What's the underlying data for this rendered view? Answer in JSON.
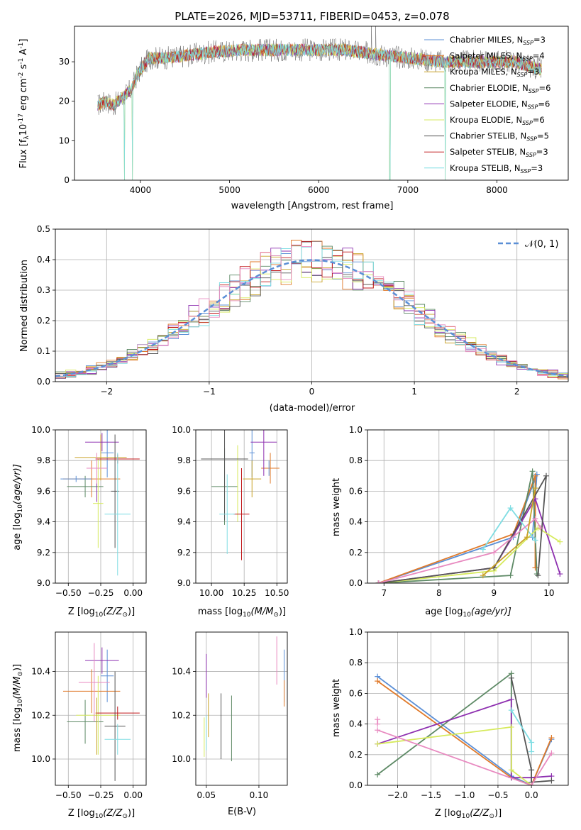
{
  "colors": {
    "palette": [
      "#5b8fd6",
      "#e07a2a",
      "#c9a227",
      "#5e8a66",
      "#8e30b0",
      "#d6ea5c",
      "#4a4a4a",
      "#c0181b",
      "#7fdde3",
      "#e88ac0"
    ],
    "normal_line": "#5b8fd6",
    "grid": "#b0b0b0"
  },
  "chart_data": [
    {
      "id": "spectrum",
      "type": "line",
      "title": "PLATE=2026, MJD=53711, FIBERID=0453, z=0.078",
      "xlabel": "wavelength [Angstrom, rest frame]",
      "ylabel": "Flux [f",
      "ylabel_sub": "λ",
      "ylabel_rest": "10",
      "ylabel_exp1": "-17",
      "ylabel_rest2": " erg cm",
      "ylabel_exp2": "-2",
      "ylabel_rest3": " s",
      "ylabel_exp3": "-1",
      "ylabel_rest4": " A",
      "ylabel_exp4": "-1",
      "ylabel_end": "]",
      "xlim": [
        3260,
        8800
      ],
      "ylim": [
        0,
        39
      ],
      "xticks": [
        "4000",
        "5000",
        "6000",
        "7000",
        "8000"
      ],
      "xtick_values": [
        4000,
        5000,
        6000,
        7000,
        8000
      ],
      "yticks": [
        "0",
        "10",
        "20",
        "30"
      ],
      "ytick_values": [
        0,
        10,
        20,
        30
      ],
      "grid": false,
      "legend_position": "right",
      "continuum": [
        [
          3520,
          19
        ],
        [
          3620,
          20
        ],
        [
          3700,
          19
        ],
        [
          3800,
          21
        ],
        [
          3900,
          23
        ],
        [
          3950,
          26
        ],
        [
          4000,
          28
        ],
        [
          4100,
          31
        ],
        [
          4300,
          31
        ],
        [
          4500,
          31.5
        ],
        [
          4800,
          32.5
        ],
        [
          5200,
          33
        ],
        [
          5600,
          33
        ],
        [
          6000,
          33
        ],
        [
          6300,
          33
        ],
        [
          6600,
          32
        ],
        [
          7000,
          31
        ],
        [
          7400,
          30
        ],
        [
          7800,
          30
        ],
        [
          8200,
          30
        ],
        [
          8500,
          28
        ]
      ],
      "dips": [
        [
          3820,
          0
        ],
        [
          3910,
          0
        ],
        [
          6800,
          0
        ],
        [
          7420,
          0
        ]
      ],
      "spikes": [
        [
          6590,
          39
        ],
        [
          6640,
          39
        ]
      ],
      "series": [
        {
          "name": "Chabrier MILES, N",
          "sub": "SSP",
          "n": "=3"
        },
        {
          "name": "Salpeter MILES, N",
          "sub": "SSP",
          "n": "=4"
        },
        {
          "name": "Kroupa MILES, N",
          "sub": "SSP",
          "n": "=3"
        },
        {
          "name": "Chabrier ELODIE, N",
          "sub": "SSP",
          "n": "=6"
        },
        {
          "name": "Salpeter ELODIE, N",
          "sub": "SSP",
          "n": "=6"
        },
        {
          "name": "Kroupa ELODIE, N",
          "sub": "SSP",
          "n": "=6"
        },
        {
          "name": "Chabrier STELIB, N",
          "sub": "SSP",
          "n": "=5"
        },
        {
          "name": "Salpeter STELIB, N",
          "sub": "SSP",
          "n": "=3"
        },
        {
          "name": "Kroupa STELIB, N",
          "sub": "SSP",
          "n": "=3"
        }
      ]
    },
    {
      "id": "residuals",
      "type": "area",
      "xlabel": "(data-model)/error",
      "ylabel": "Normed distribution",
      "xlim": [
        -2.5,
        2.5
      ],
      "ylim": [
        0,
        0.5
      ],
      "xticks": [
        "−2",
        "−1",
        "0",
        "1",
        "2"
      ],
      "xtick_values": [
        -2,
        -1,
        0,
        1,
        2
      ],
      "yticks": [
        "0.0",
        "0.1",
        "0.2",
        "0.3",
        "0.4",
        "0.5"
      ],
      "ytick_values": [
        0,
        0.1,
        0.2,
        0.3,
        0.4,
        0.5
      ],
      "grid": true,
      "legend_position": "top-right",
      "normal_label": "𝒩(0, 1)",
      "bin_width": 0.1,
      "bin_start": -2.5
    },
    {
      "id": "age_vs_Z",
      "type": "scatter",
      "xlabel_plain": "Z [log",
      "xlabel_sub": "10",
      "xlabel_mid": "(Z/Z",
      "xlabel_sub2": "⊙",
      "xlabel_end": ")]",
      "ylabel_plain": "age  [log",
      "ylabel_sub": "10",
      "ylabel_end": "(age/yr)]",
      "xlim": [
        -0.6,
        0.1
      ],
      "ylim": [
        9.0,
        10.0
      ],
      "xticks": [
        "−0.50",
        "−0.25",
        "0.00"
      ],
      "xtick_values": [
        -0.5,
        -0.25,
        0
      ],
      "yticks": [
        "9.0",
        "9.2",
        "9.4",
        "9.6",
        "9.8",
        "10.0"
      ],
      "ytick_values": [
        9.0,
        9.2,
        9.4,
        9.6,
        9.8,
        10.0
      ],
      "grid": true,
      "points": [
        {
          "c": 0,
          "x": -0.2,
          "xe": 0.05,
          "y": 9.85,
          "ye": 0.16
        },
        {
          "c": 1,
          "x": -0.32,
          "xe": 0.22,
          "y": 9.68,
          "ye": 0.12
        },
        {
          "c": 2,
          "x": -0.25,
          "xe": 0.2,
          "y": 9.82,
          "ye": 0.15
        },
        {
          "c": 3,
          "x": -0.37,
          "xe": 0.14,
          "y": 9.63,
          "ye": 0.07
        },
        {
          "c": 4,
          "x": -0.24,
          "xe": 0.13,
          "y": 9.92,
          "ye": 0.06
        },
        {
          "c": 4,
          "x": -0.28,
          "xe": 0.0,
          "y": 9.63,
          "ye": 0.1
        },
        {
          "c": 5,
          "x": -0.27,
          "xe": 0.04,
          "y": 9.52,
          "ye": 0.29
        },
        {
          "c": 6,
          "x": -0.14,
          "xe": 0.03,
          "y": 9.6,
          "ye": 0.37
        },
        {
          "c": 7,
          "x": -0.12,
          "xe": 0.17,
          "y": 9.81,
          "ye": 0.03
        },
        {
          "c": 8,
          "x": -0.12,
          "xe": 0.1,
          "y": 9.45,
          "ye": 0.4
        },
        {
          "c": 9,
          "x": -0.28,
          "xe": 0.08,
          "y": 9.75,
          "ye": 0.1
        },
        {
          "c": 0,
          "x": -0.44,
          "xe": 0.12,
          "y": 9.68,
          "ye": 0.02
        }
      ]
    },
    {
      "id": "age_vs_mass",
      "type": "scatter",
      "xlabel_plain": "mass [log",
      "xlabel_sub": "10",
      "xlabel_mid": "(M/M",
      "xlabel_sub2": "⊙",
      "xlabel_end": ")]",
      "xlim": [
        9.88,
        10.58
      ],
      "ylim": [
        9.0,
        10.0
      ],
      "xticks": [
        "10.00",
        "10.25",
        "10.50"
      ],
      "xtick_values": [
        10.0,
        10.25,
        10.5
      ],
      "yticks": [
        "9.0",
        "9.2",
        "9.4",
        "9.6",
        "9.8",
        "10.0"
      ],
      "ytick_values": [
        9.0,
        9.2,
        9.4,
        9.6,
        9.8,
        10.0
      ],
      "grid": true,
      "points": [
        {
          "c": 0,
          "x": 10.31,
          "xe": 0.02,
          "y": 9.85,
          "ye": 0.16
        },
        {
          "c": 1,
          "x": 10.45,
          "xe": 0.07,
          "y": 9.75,
          "ye": 0.1
        },
        {
          "c": 2,
          "x": 10.31,
          "xe": 0.07,
          "y": 9.68,
          "ye": 0.12
        },
        {
          "c": 3,
          "x": 10.1,
          "xe": 0.1,
          "y": 9.63,
          "ye": 0.25
        },
        {
          "c": 4,
          "x": 10.4,
          "xe": 0.1,
          "y": 9.92,
          "ye": 0.22
        },
        {
          "c": 5,
          "x": 10.2,
          "xe": 0.0,
          "y": 9.65,
          "ye": 0.25
        },
        {
          "c": 6,
          "x": 10.1,
          "xe": 0.18,
          "y": 9.81,
          "ye": 0.4
        },
        {
          "c": 7,
          "x": 10.23,
          "xe": 0.06,
          "y": 9.45,
          "ye": 0.3
        },
        {
          "c": 8,
          "x": 10.12,
          "xe": 0.06,
          "y": 9.45,
          "ye": 0.26
        },
        {
          "c": 0,
          "x": 10.44,
          "xe": 0.0,
          "y": 9.75,
          "ye": 0.05
        }
      ]
    },
    {
      "id": "weight_vs_age",
      "type": "line",
      "ylabel": "mass weight",
      "xlabel_plain": "age  [log",
      "xlabel_sub": "10",
      "xlabel_end": "(age/yr)]",
      "xlim": [
        6.7,
        10.35
      ],
      "ylim": [
        0,
        1.0
      ],
      "xticks": [
        "7",
        "8",
        "9",
        "10"
      ],
      "xtick_values": [
        7,
        8,
        9,
        10
      ],
      "yticks": [
        "0.0",
        "0.2",
        "0.4",
        "0.6",
        "0.8",
        "1.0"
      ],
      "ytick_values": [
        0,
        0.2,
        0.4,
        0.6,
        0.8,
        1.0
      ],
      "grid": true,
      "lines": [
        {
          "c": 0,
          "pts": [
            [
              6.9,
              0.0
            ],
            [
              9.35,
              0.3
            ],
            [
              9.78,
              0.71
            ],
            [
              9.7,
              0.3
            ]
          ]
        },
        {
          "c": 1,
          "pts": [
            [
              6.9,
              0.0
            ],
            [
              9.35,
              0.32
            ],
            [
              9.75,
              0.7
            ],
            [
              9.75,
              0.1
            ]
          ]
        },
        {
          "c": 3,
          "pts": [
            [
              6.9,
              0.0
            ],
            [
              9.3,
              0.05
            ],
            [
              9.7,
              0.73
            ],
            [
              9.78,
              0.06
            ]
          ]
        },
        {
          "c": 4,
          "pts": [
            [
              6.9,
              0.0
            ],
            [
              9.0,
              0.1
            ],
            [
              9.75,
              0.55
            ],
            [
              10.2,
              0.06
            ]
          ]
        },
        {
          "c": 5,
          "pts": [
            [
              6.9,
              0.0
            ],
            [
              9.0,
              0.08
            ],
            [
              9.8,
              0.36
            ],
            [
              10.2,
              0.27
            ]
          ]
        },
        {
          "c": 6,
          "pts": [
            [
              6.9,
              0.0
            ],
            [
              9.0,
              0.1
            ],
            [
              9.95,
              0.7
            ],
            [
              9.8,
              0.05
            ]
          ]
        },
        {
          "c": 8,
          "pts": [
            [
              8.8,
              0.22
            ],
            [
              9.3,
              0.49
            ],
            [
              9.75,
              0.28
            ]
          ]
        },
        {
          "c": 9,
          "pts": [
            [
              6.9,
              0.0
            ],
            [
              9.0,
              0.2
            ],
            [
              9.75,
              0.42
            ],
            [
              9.85,
              0.36
            ]
          ]
        },
        {
          "c": 2,
          "pts": [
            [
              8.8,
              0.05
            ],
            [
              9.6,
              0.3
            ],
            [
              9.75,
              0.62
            ]
          ]
        }
      ]
    },
    {
      "id": "mass_vs_Z",
      "type": "scatter",
      "xlabel_plain": "Z [log",
      "xlabel_sub": "10",
      "xlabel_mid": "(Z/Z",
      "xlabel_sub2": "⊙",
      "xlabel_end": ")]",
      "ylabel_plain": "mass [log",
      "ylabel_sub": "10",
      "ylabel_end": "(M/M",
      "ylabel_sub2": "⊙",
      "ylabel_end2": ")]",
      "xlim": [
        -0.6,
        0.1
      ],
      "ylim": [
        9.88,
        10.58
      ],
      "xticks": [
        "−0.50",
        "−0.25",
        "0.00"
      ],
      "xtick_values": [
        -0.5,
        -0.25,
        0
      ],
      "yticks": [
        "10.0",
        "10.2",
        "10.4"
      ],
      "ytick_values": [
        10.0,
        10.2,
        10.4
      ],
      "grid": true,
      "points": [
        {
          "c": 0,
          "x": -0.2,
          "xe": 0.05,
          "y": 10.38,
          "ye": 0.12
        },
        {
          "c": 1,
          "x": -0.32,
          "xe": 0.22,
          "y": 10.31,
          "ye": 0.1
        },
        {
          "c": 3,
          "x": -0.37,
          "xe": 0.14,
          "y": 10.17,
          "ye": 0.1
        },
        {
          "c": 4,
          "x": -0.24,
          "xe": 0.13,
          "y": 10.45,
          "ye": 0.06
        },
        {
          "c": 5,
          "x": -0.27,
          "xe": 0.17,
          "y": 10.2,
          "ye": 0.18
        },
        {
          "c": 6,
          "x": -0.14,
          "xe": 0.08,
          "y": 10.15,
          "ye": 0.25
        },
        {
          "c": 7,
          "x": -0.12,
          "xe": 0.17,
          "y": 10.21,
          "ye": 0.03
        },
        {
          "c": 8,
          "x": -0.12,
          "xe": 0.1,
          "y": 10.09,
          "ye": 0.07
        },
        {
          "c": 9,
          "x": -0.3,
          "xe": 0.12,
          "y": 10.35,
          "ye": 0.18
        },
        {
          "c": 2,
          "x": -0.28,
          "xe": 0.0,
          "y": 10.15,
          "ye": 0.13
        }
      ]
    },
    {
      "id": "mass_vs_EBV",
      "type": "scatter",
      "xlabel": "E(B-V)",
      "xlim": [
        0.04,
        0.127
      ],
      "ylim": [
        9.88,
        10.58
      ],
      "xticks": [
        "0.05",
        "0.10"
      ],
      "xtick_values": [
        0.05,
        0.1
      ],
      "yticks": [
        "10.0",
        "10.2",
        "10.4"
      ],
      "ytick_values": [
        10.0,
        10.2,
        10.4
      ],
      "grid": true,
      "points": [
        {
          "c": 0,
          "x": 0.124,
          "xe": 0.0,
          "y": 10.38,
          "ye": 0.12
        },
        {
          "c": 1,
          "x": 0.124,
          "xe": 0.0,
          "y": 10.3,
          "ye": 0.06
        },
        {
          "c": 4,
          "x": 0.05,
          "xe": 0.0,
          "y": 10.38,
          "ye": 0.1
        },
        {
          "c": 2,
          "x": 0.052,
          "xe": 0.0,
          "y": 10.2,
          "ye": 0.1
        },
        {
          "c": 5,
          "x": 0.048,
          "xe": 0.0,
          "y": 10.1,
          "ye": 0.09
        },
        {
          "c": 3,
          "x": 0.074,
          "xe": 0.0,
          "y": 10.14,
          "ye": 0.15
        },
        {
          "c": 6,
          "x": 0.064,
          "xe": 0.0,
          "y": 10.15,
          "ye": 0.15
        },
        {
          "c": 9,
          "x": 0.117,
          "xe": 0.0,
          "y": 10.45,
          "ye": 0.11
        },
        {
          "c": 8,
          "x": 0.05,
          "xe": 0.0,
          "y": 10.12,
          "ye": 0.08
        }
      ]
    },
    {
      "id": "weight_vs_Z",
      "type": "line",
      "ylabel": "mass weight",
      "xlabel_plain": "Z [log",
      "xlabel_sub": "10",
      "xlabel_mid": "(Z/Z",
      "xlabel_sub2": "⊙",
      "xlabel_end": ")]",
      "xlim": [
        -2.45,
        0.55
      ],
      "ylim": [
        0,
        1.0
      ],
      "xticks": [
        "−2.0",
        "−1.5",
        "−1.0",
        "−0.5",
        "0.0"
      ],
      "xtick_values": [
        -2.0,
        -1.5,
        -1.0,
        -0.5,
        0.0
      ],
      "yticks": [
        "0.0",
        "0.2",
        "0.4",
        "0.6",
        "0.8",
        "1.0"
      ],
      "ytick_values": [
        0,
        0.2,
        0.4,
        0.6,
        0.8,
        1.0
      ],
      "grid": true,
      "lines": [
        {
          "c": 0,
          "pts": [
            [
              -2.3,
              0.71
            ],
            [
              -0.3,
              0.06
            ],
            [
              0.0,
              0.0
            ],
            [
              0.3,
              0.3
            ]
          ]
        },
        {
          "c": 1,
          "pts": [
            [
              -2.3,
              0.68
            ],
            [
              -0.3,
              0.05
            ],
            [
              0.0,
              0.0
            ],
            [
              0.3,
              0.31
            ]
          ]
        },
        {
          "c": 3,
          "pts": [
            [
              -2.3,
              0.07
            ],
            [
              -0.3,
              0.73
            ],
            [
              -0.3,
              0.05
            ],
            [
              0.0,
              0.0
            ]
          ]
        },
        {
          "c": 4,
          "pts": [
            [
              -2.3,
              0.27
            ],
            [
              -0.3,
              0.56
            ],
            [
              -0.3,
              0.05
            ],
            [
              0.0,
              0.05
            ],
            [
              0.3,
              0.06
            ]
          ]
        },
        {
          "c": 5,
          "pts": [
            [
              -2.3,
              0.27
            ],
            [
              -0.3,
              0.38
            ],
            [
              -0.3,
              0.1
            ],
            [
              0.0,
              0.0
            ]
          ]
        },
        {
          "c": 6,
          "pts": [
            [
              -0.3,
              0.7
            ],
            [
              0.0,
              0.1
            ],
            [
              0.0,
              0.02
            ],
            [
              0.3,
              0.03
            ]
          ]
        },
        {
          "c": 8,
          "pts": [
            [
              -0.3,
              0.49
            ],
            [
              0.0,
              0.28
            ],
            [
              0.0,
              0.22
            ]
          ]
        },
        {
          "c": 9,
          "pts": [
            [
              -2.3,
              0.36
            ],
            [
              0.0,
              0.0
            ],
            [
              0.3,
              0.21
            ]
          ]
        },
        {
          "c": 9,
          "pts": [
            [
              -2.3,
              0.43
            ],
            [
              -2.3,
              0.4
            ]
          ]
        }
      ]
    }
  ]
}
